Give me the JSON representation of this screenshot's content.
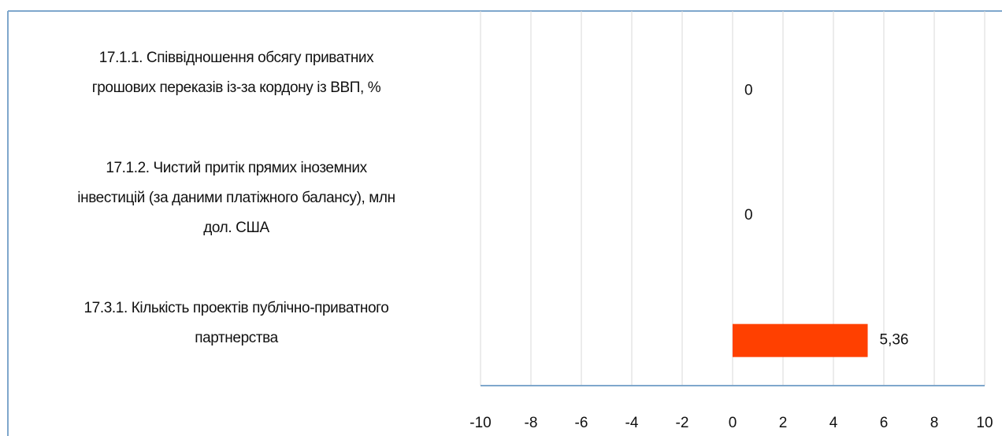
{
  "chart_data": {
    "type": "barh",
    "categories": [
      "17.1.1. Співвідношення обсягу приватних\nгрошових переказів із-за кордону із ВВП, %",
      "17.1.2. Чистий притік прямих іноземних\nінвестицій (за даними платіжного балансу), млн\nдол. США",
      "17.3.1. Кількість проектів публічно-приватного\nпартнерства"
    ],
    "values": [
      0,
      0,
      5.36
    ],
    "value_labels": [
      "0",
      "0",
      "5,36"
    ],
    "color": "#ff4000",
    "xlim": [
      -10,
      10
    ],
    "xticks": [
      -10,
      -8,
      -6,
      -4,
      -2,
      0,
      2,
      4,
      6,
      8,
      10
    ],
    "grid": true
  }
}
